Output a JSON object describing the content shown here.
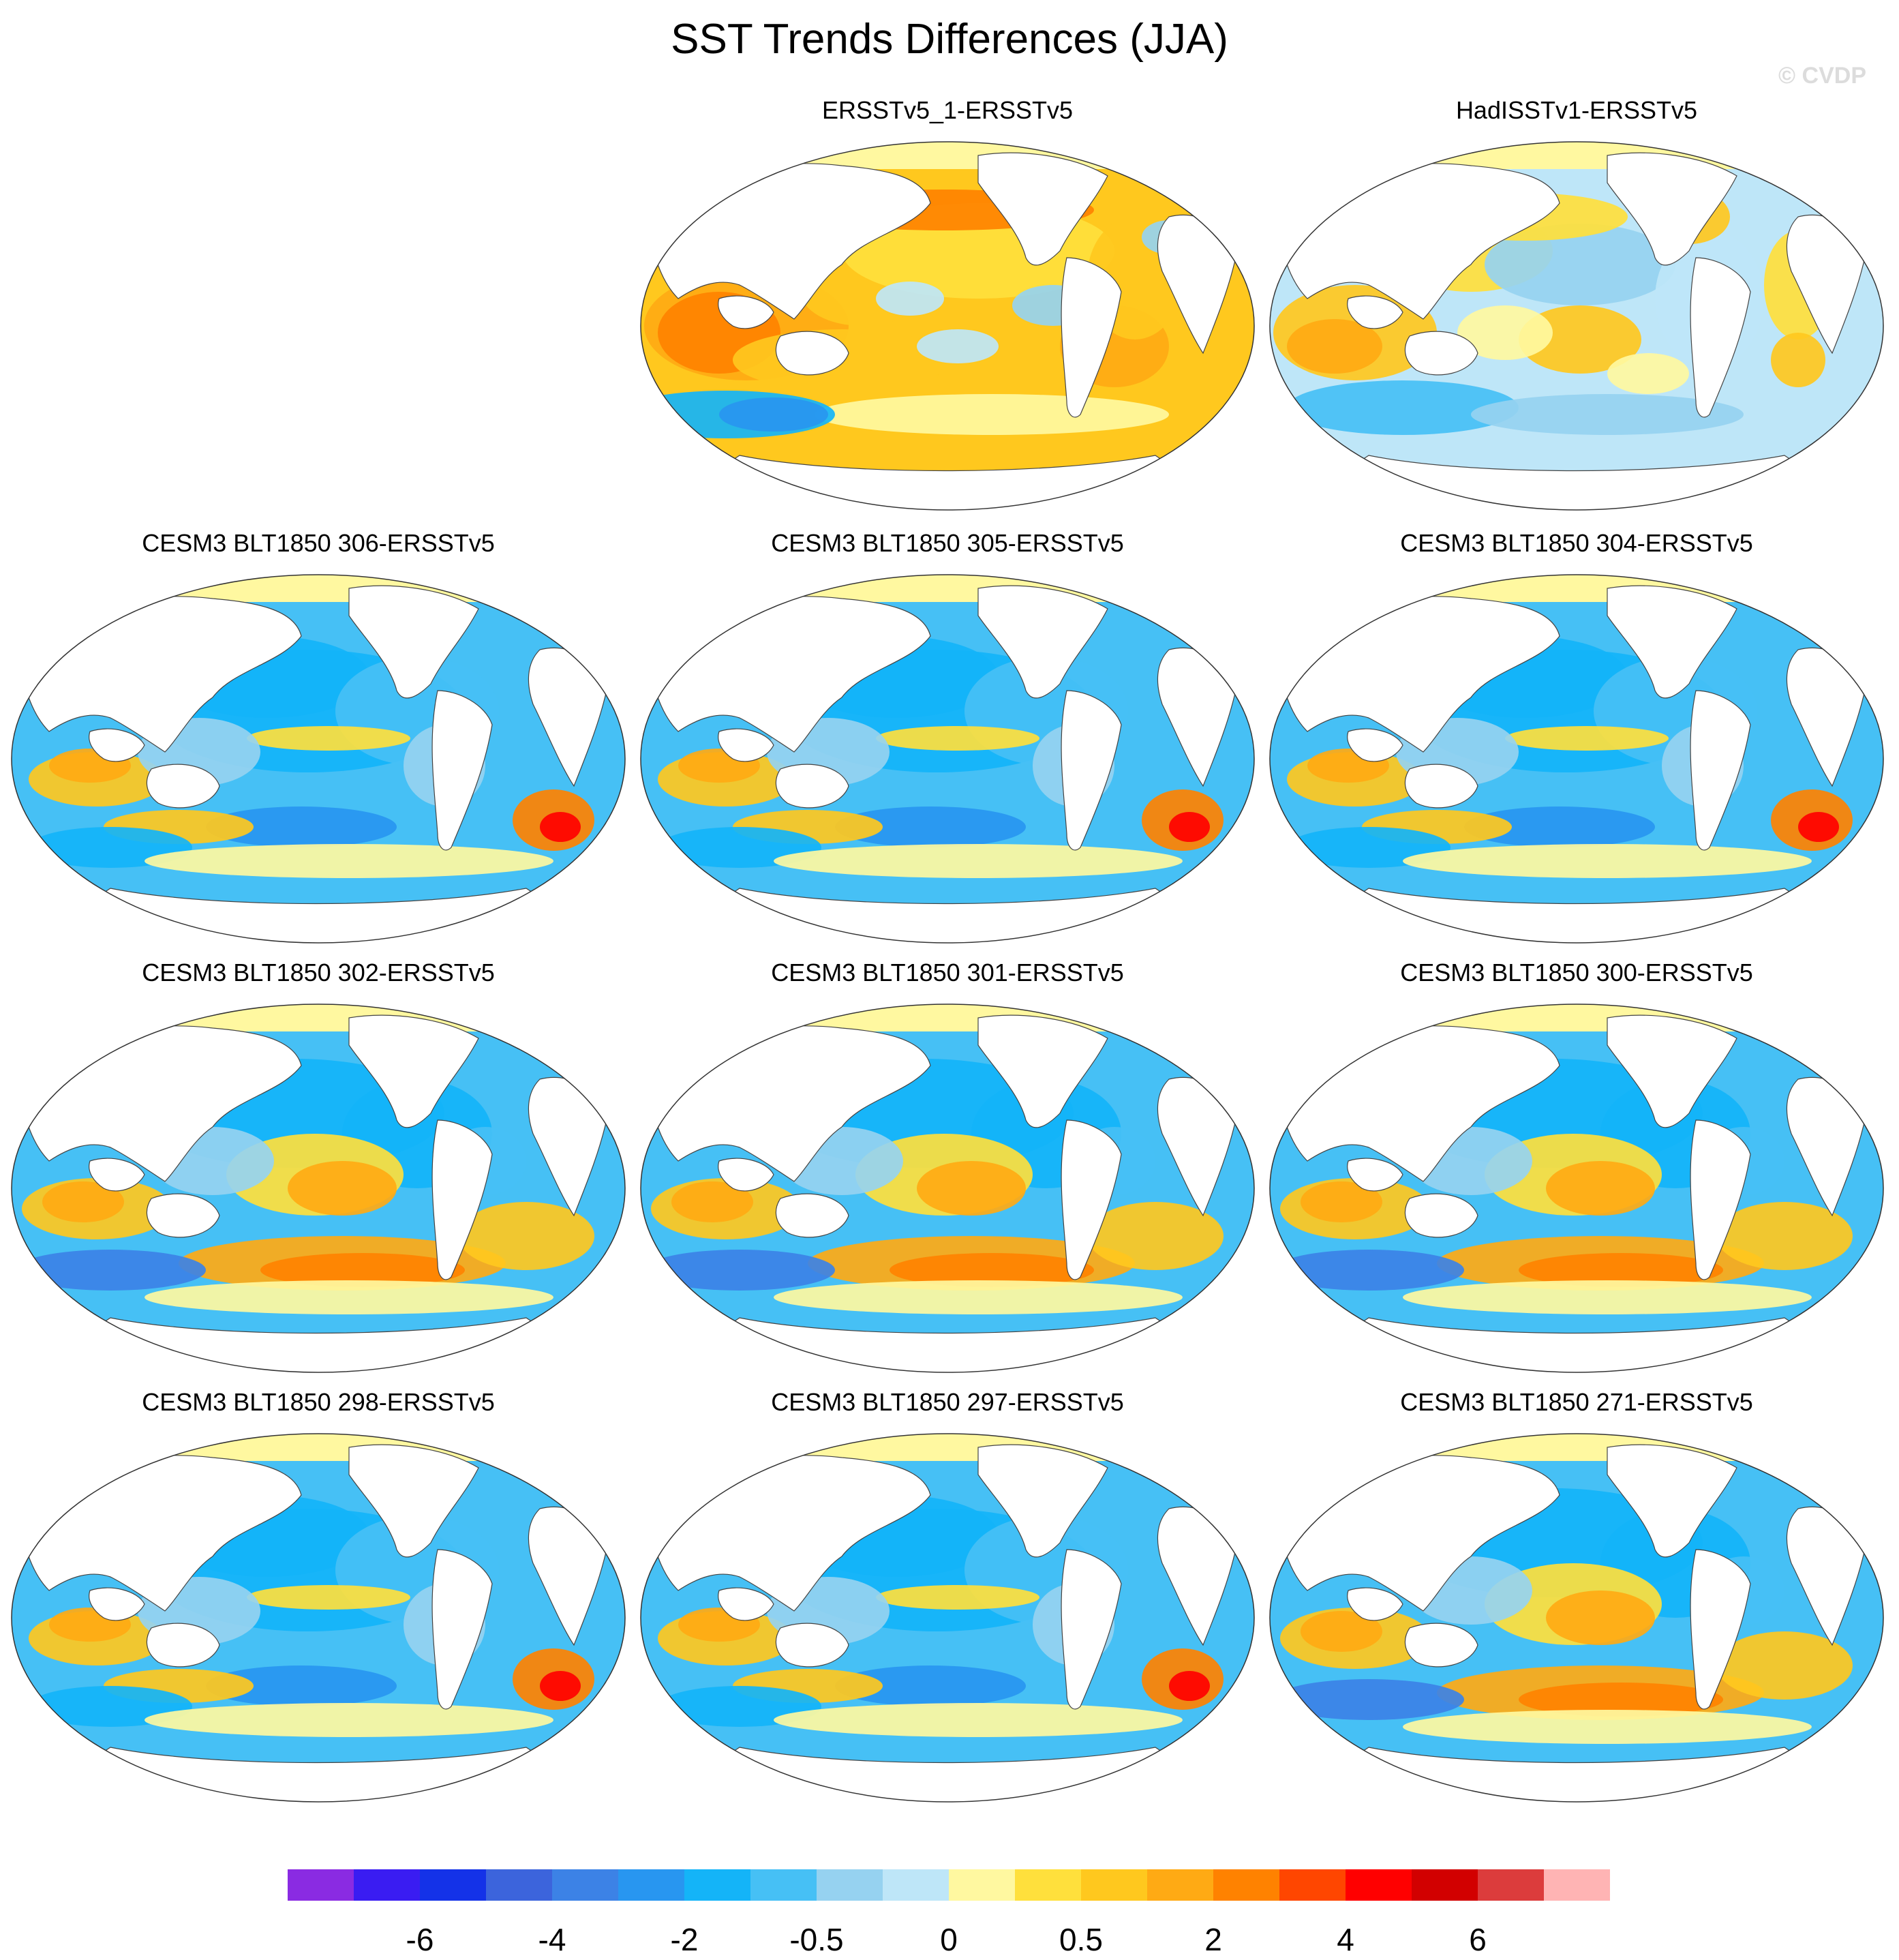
{
  "title": "SST Trends Differences (JJA)",
  "watermark": "© CVDP",
  "panels": [
    {
      "label": "ERSSTv5_1-ERSSTv5",
      "pattern": "warm"
    },
    {
      "label": "HadISSTv1-ERSSTv5",
      "pattern": "mixed"
    },
    {
      "label": "CESM3 BLT1850 306-ERSSTv5",
      "pattern": "cool"
    },
    {
      "label": "CESM3 BLT1850 305-ERSSTv5",
      "pattern": "cool"
    },
    {
      "label": "CESM3 BLT1850 304-ERSSTv5",
      "pattern": "cool"
    },
    {
      "label": "CESM3 BLT1850 302-ERSSTv5",
      "pattern": "southwarm"
    },
    {
      "label": "CESM3 BLT1850 301-ERSSTv5",
      "pattern": "southwarm"
    },
    {
      "label": "CESM3 BLT1850 300-ERSSTv5",
      "pattern": "southwarm"
    },
    {
      "label": "CESM3 BLT1850 298-ERSSTv5",
      "pattern": "cool"
    },
    {
      "label": "CESM3 BLT1850 297-ERSSTv5",
      "pattern": "cool"
    },
    {
      "label": "CESM3 BLT1850 271-ERSSTv5",
      "pattern": "southwarm"
    }
  ],
  "colorbar": {
    "colors": [
      "#8a2be2",
      "#3a1cf2",
      "#1432e8",
      "#3c64dc",
      "#3c82e6",
      "#2896f0",
      "#14b4f8",
      "#46c0f5",
      "#96d2f0",
      "#bee6f8",
      "#fff8a0",
      "#ffe03c",
      "#ffc81e",
      "#ffaa14",
      "#ff8200",
      "#ff4600",
      "#ff0000",
      "#d20000",
      "#dc3c3c",
      "#ffb4b4"
    ],
    "labels": [
      {
        "text": "-6",
        "boundary": 2
      },
      {
        "text": "-4",
        "boundary": 4
      },
      {
        "text": "-2",
        "boundary": 6
      },
      {
        "text": "-0.5",
        "boundary": 8
      },
      {
        "text": "0",
        "boundary": 10
      },
      {
        "text": "0.5",
        "boundary": 12
      },
      {
        "text": "2",
        "boundary": 14
      },
      {
        "text": "4",
        "boundary": 16
      },
      {
        "text": "6",
        "boundary": 18
      }
    ]
  }
}
